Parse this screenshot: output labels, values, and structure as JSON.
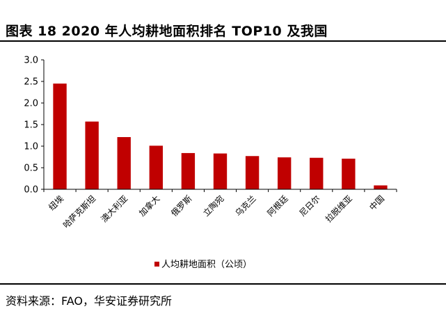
{
  "header": {
    "title": "图表 18 2020 年人均耕地面积排名 TOP10 及我国"
  },
  "footer": {
    "source": "资料来源：FAO，华安证券研究所"
  },
  "colors": {
    "bar": "#C00000",
    "axis": "#000000"
  },
  "chart_data": {
    "type": "bar",
    "categories": [
      "纽埃",
      "哈萨克斯坦",
      "澳大利亚",
      "加拿大",
      "俄罗斯",
      "立陶宛",
      "乌克兰",
      "阿根廷",
      "尼日尔",
      "拉脱维亚",
      "中国"
    ],
    "series": [
      {
        "name": "人均耕地面积（公顷）",
        "values": [
          2.45,
          1.57,
          1.21,
          1.01,
          0.84,
          0.83,
          0.77,
          0.74,
          0.73,
          0.71,
          0.09
        ]
      }
    ],
    "ylim": [
      0,
      3.0
    ],
    "yticks": [
      "0.0",
      "0.5",
      "1.0",
      "1.5",
      "2.0",
      "2.5",
      "3.0"
    ],
    "grid": false,
    "legend": "bottom"
  }
}
